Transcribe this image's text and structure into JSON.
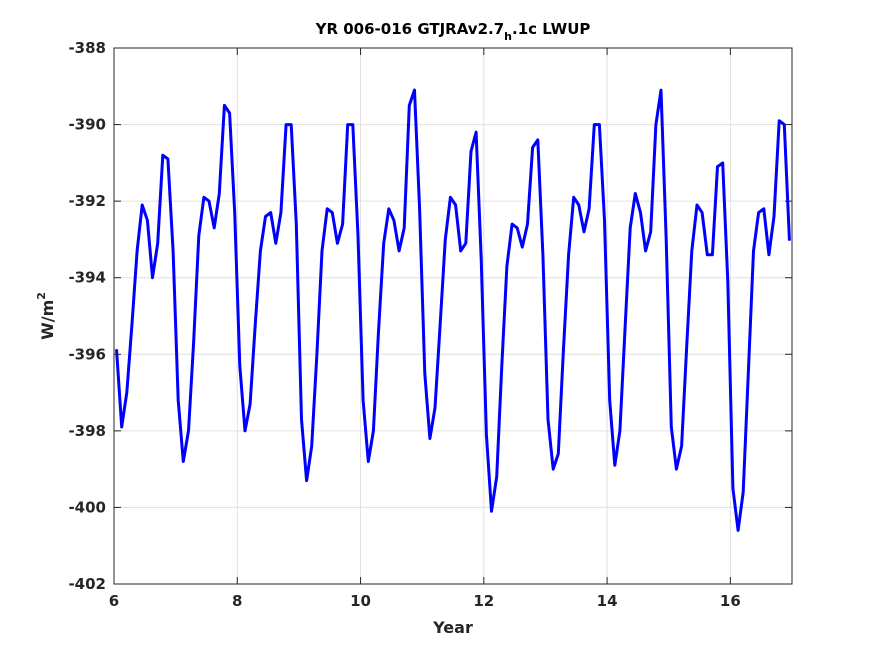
{
  "chart_data": {
    "type": "line",
    "title": {
      "main": "YR 006-016 GTJRAv2.7",
      "subscript": "h",
      "suffix": ".1c LWUP"
    },
    "xlabel": "Year",
    "ylabel": {
      "base": "W/m",
      "superscript": "2"
    },
    "xlim": [
      6,
      17
    ],
    "ylim": [
      -402,
      -388
    ],
    "xticks": [
      6,
      8,
      10,
      12,
      14,
      16
    ],
    "yticks": [
      -388,
      -390,
      -392,
      -394,
      -396,
      -398,
      -400,
      -402
    ],
    "grid": true,
    "legend": "none",
    "colors": {
      "line": "#0000ff",
      "grid": "#e0e0e0",
      "axes": "#262626"
    },
    "series": [
      {
        "x": [
          6.0417,
          6.125,
          6.2083,
          6.2917,
          6.375,
          6.4583,
          6.5417,
          6.625,
          6.7083,
          6.7917,
          6.875,
          6.9583,
          7.0417,
          7.125,
          7.2083,
          7.2917,
          7.375,
          7.4583,
          7.5417,
          7.625,
          7.7083,
          7.7917,
          7.875,
          7.9583,
          8.0417,
          8.125,
          8.2083,
          8.2917,
          8.375,
          8.4583,
          8.5417,
          8.625,
          8.7083,
          8.7917,
          8.875,
          8.9583,
          9.0417,
          9.125,
          9.2083,
          9.2917,
          9.375,
          9.4583,
          9.5417,
          9.625,
          9.7083,
          9.7917,
          9.875,
          9.9583,
          10.0417,
          10.125,
          10.2083,
          10.2917,
          10.375,
          10.4583,
          10.5417,
          10.625,
          10.7083,
          10.7917,
          10.875,
          10.9583,
          11.0417,
          11.125,
          11.2083,
          11.2917,
          11.375,
          11.4583,
          11.5417,
          11.625,
          11.7083,
          11.7917,
          11.875,
          11.9583,
          12.0417,
          12.125,
          12.2083,
          12.2917,
          12.375,
          12.4583,
          12.5417,
          12.625,
          12.7083,
          12.7917,
          12.875,
          12.9583,
          13.0417,
          13.125,
          13.2083,
          13.2917,
          13.375,
          13.4583,
          13.5417,
          13.625,
          13.7083,
          13.7917,
          13.875,
          13.9583,
          14.0417,
          14.125,
          14.2083,
          14.2917,
          14.375,
          14.4583,
          14.5417,
          14.625,
          14.7083,
          14.7917,
          14.875,
          14.9583,
          15.0417,
          15.125,
          15.2083,
          15.2917,
          15.375,
          15.4583,
          15.5417,
          15.625,
          15.7083,
          15.7917,
          15.875,
          15.9583,
          16.0417,
          16.125,
          16.2083,
          16.2917,
          16.375,
          16.4583,
          16.5417,
          16.625,
          16.7083,
          16.7917,
          16.875,
          16.9583
        ],
        "y": [
          -395.9,
          -397.9,
          -397.0,
          -395.2,
          -393.3,
          -392.1,
          -392.5,
          -394.0,
          -393.1,
          -390.8,
          -390.9,
          -393.3,
          -397.2,
          -398.8,
          -398.0,
          -395.7,
          -392.9,
          -391.9,
          -392.0,
          -392.7,
          -391.8,
          -389.5,
          -389.7,
          -392.3,
          -396.3,
          -398.0,
          -397.3,
          -395.2,
          -393.3,
          -392.4,
          -392.3,
          -393.1,
          -392.3,
          -390.0,
          -390.0,
          -392.6,
          -397.7,
          -399.3,
          -398.4,
          -396.0,
          -393.3,
          -392.2,
          -392.3,
          -393.1,
          -392.6,
          -390.0,
          -390.0,
          -392.9,
          -397.2,
          -398.8,
          -398.0,
          -395.4,
          -393.1,
          -392.2,
          -392.5,
          -393.3,
          -392.7,
          -389.5,
          -389.1,
          -392.2,
          -396.5,
          -398.2,
          -397.4,
          -395.2,
          -393.0,
          -391.9,
          -392.1,
          -393.3,
          -393.1,
          -390.7,
          -390.2,
          -393.5,
          -398.1,
          -400.1,
          -399.2,
          -396.3,
          -393.7,
          -392.6,
          -392.7,
          -393.2,
          -392.6,
          -390.6,
          -390.4,
          -393.4,
          -397.7,
          -399.0,
          -398.6,
          -395.9,
          -393.4,
          -391.9,
          -392.1,
          -392.8,
          -392.2,
          -390.0,
          -390.0,
          -392.5,
          -397.2,
          -398.9,
          -398.0,
          -395.3,
          -392.7,
          -391.8,
          -392.3,
          -393.3,
          -392.8,
          -390.0,
          -389.1,
          -393.0,
          -397.9,
          -399.0,
          -398.4,
          -395.8,
          -393.3,
          -392.1,
          -392.3,
          -393.4,
          -393.4,
          -391.1,
          -391.0,
          -394.1,
          -399.5,
          -400.6,
          -399.6,
          -396.5,
          -393.3,
          -392.3,
          -392.2,
          -393.4,
          -392.4,
          -389.9,
          -390.0,
          -393.0
        ]
      }
    ]
  }
}
